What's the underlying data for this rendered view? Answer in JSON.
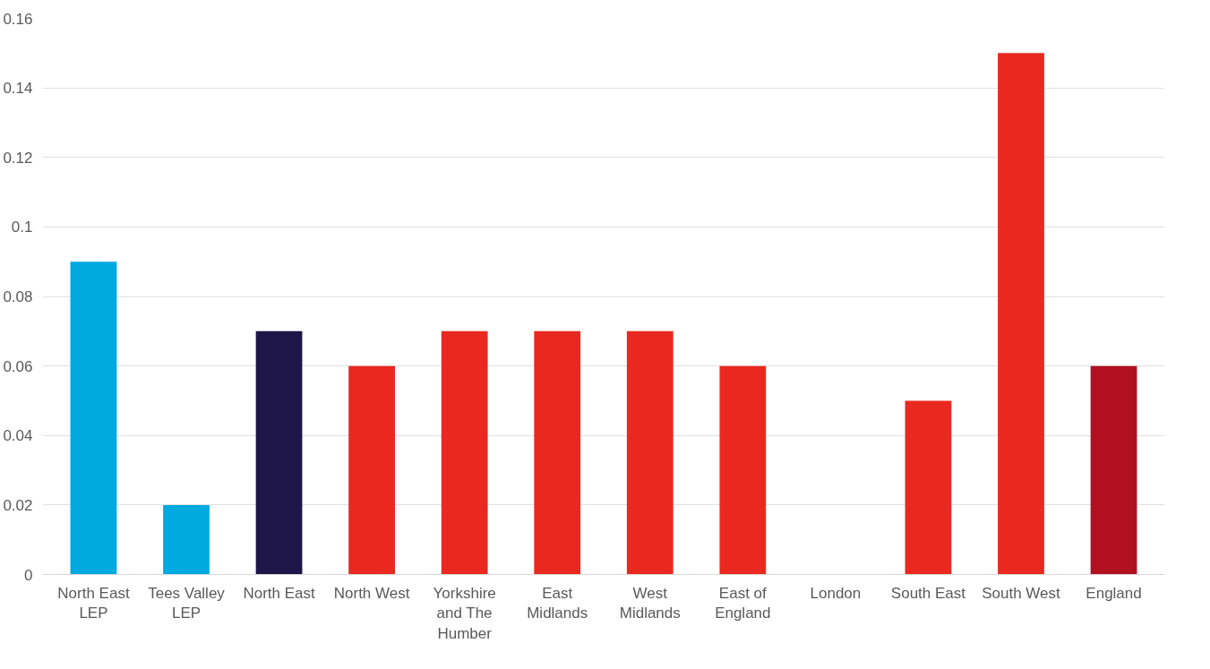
{
  "chart_data": {
    "type": "bar",
    "categories": [
      "North East LEP",
      "Tees Valley LEP",
      "North East",
      "North West",
      "Yorkshire and The Humber",
      "East Midlands",
      "West Midlands",
      "East of England",
      "London",
      "South East",
      "South West",
      "England"
    ],
    "values": [
      0.09,
      0.02,
      0.07,
      0.06,
      0.07,
      0.07,
      0.07,
      0.06,
      0,
      0.05,
      0.15,
      0.06
    ],
    "colors": [
      "#00a9e0",
      "#00a9e0",
      "#1e1548",
      "#e9291f",
      "#e9291f",
      "#e9291f",
      "#e9291f",
      "#e9291f",
      "#e9291f",
      "#e9291f",
      "#e9291f",
      "#b01020"
    ],
    "ylim": [
      0,
      0.16
    ],
    "yticks": [
      0,
      0.02,
      0.04,
      0.06,
      0.08,
      0.1,
      0.12,
      0.14,
      0.16
    ],
    "grid": "y"
  }
}
